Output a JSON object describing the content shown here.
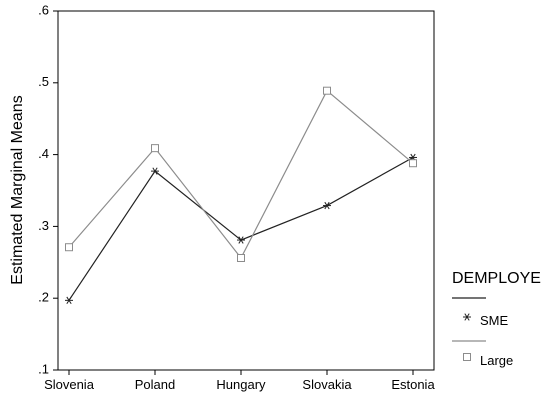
{
  "chart_data": {
    "type": "line",
    "title": "",
    "xlabel": "",
    "ylabel": "Estimated Marginal Means",
    "categories": [
      "Slovenia",
      "Poland",
      "Hungary",
      "Slovakia",
      "Estonia"
    ],
    "ylim": [
      0.1,
      0.6
    ],
    "yticks": [
      0.1,
      0.2,
      0.3,
      0.4,
      0.5,
      0.6
    ],
    "ytick_labels": [
      ".1",
      ".2",
      ".3",
      ".4",
      ".5",
      ".6"
    ],
    "grid": false,
    "legend": {
      "title": "DEMPLOYE",
      "placement": "right",
      "entries": [
        "SME",
        "Large"
      ]
    },
    "series": [
      {
        "name": "SME",
        "values": [
          0.197,
          0.377,
          0.281,
          0.329,
          0.396
        ],
        "color": "#222222",
        "marker": "asterisk"
      },
      {
        "name": "Large",
        "values": [
          0.271,
          0.409,
          0.256,
          0.489,
          0.388
        ],
        "color": "#8c8c8c",
        "marker": "square"
      }
    ]
  }
}
